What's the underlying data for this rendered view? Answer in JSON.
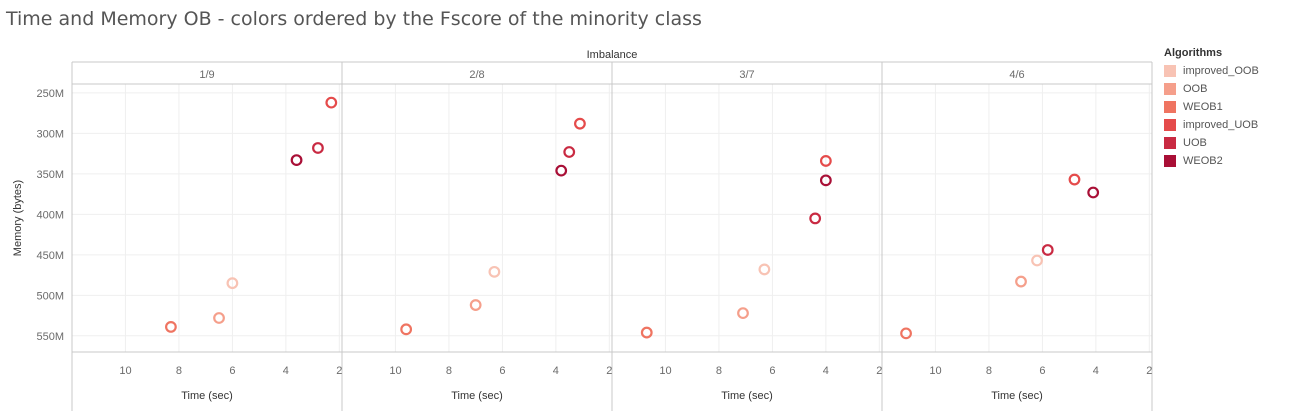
{
  "title": "Time and Memory OB  - colors ordered by the Fscore of the minority class",
  "legend": {
    "title": "Algorithms",
    "items": [
      {
        "label": "improved_OOB",
        "color": "#f8c3b4"
      },
      {
        "label": "OOB",
        "color": "#f59f8b"
      },
      {
        "label": "WEOB1",
        "color": "#ef7461"
      },
      {
        "label": "improved_UOB",
        "color": "#e54b4b"
      },
      {
        "label": "UOB",
        "color": "#c92a42"
      },
      {
        "label": "WEOB2",
        "color": "#a90f36"
      }
    ]
  },
  "chart_data": {
    "type": "scatter",
    "facet_header": "Imbalance",
    "xlabel": "Time (sec)",
    "ylabel": "Memory (bytes)",
    "x_reversed": true,
    "xlim": [
      12,
      1.9
    ],
    "x_ticks": [
      10,
      8,
      6,
      4,
      2
    ],
    "y_reversed": true,
    "ylim": [
      239,
      570
    ],
    "y_ticks": [
      250,
      300,
      350,
      400,
      450,
      500,
      550
    ],
    "y_tick_labels": [
      "250M",
      "300M",
      "350M",
      "400M",
      "450M",
      "500M",
      "550M"
    ],
    "grid": true,
    "legend_position": "right",
    "panels": [
      {
        "label": "1/9",
        "points": [
          {
            "algorithm": "improved_OOB",
            "x": 6.0,
            "y": 485
          },
          {
            "algorithm": "OOB",
            "x": 6.5,
            "y": 528
          },
          {
            "algorithm": "WEOB1",
            "x": 8.3,
            "y": 539
          },
          {
            "algorithm": "improved_UOB",
            "x": 2.3,
            "y": 262
          },
          {
            "algorithm": "UOB",
            "x": 2.8,
            "y": 318
          },
          {
            "algorithm": "WEOB2",
            "x": 3.6,
            "y": 333
          }
        ]
      },
      {
        "label": "2/8",
        "points": [
          {
            "algorithm": "improved_OOB",
            "x": 6.3,
            "y": 471
          },
          {
            "algorithm": "OOB",
            "x": 7.0,
            "y": 512
          },
          {
            "algorithm": "WEOB1",
            "x": 9.6,
            "y": 542
          },
          {
            "algorithm": "improved_UOB",
            "x": 3.1,
            "y": 288
          },
          {
            "algorithm": "UOB",
            "x": 3.5,
            "y": 323
          },
          {
            "algorithm": "WEOB2",
            "x": 3.8,
            "y": 346
          }
        ]
      },
      {
        "label": "3/7",
        "points": [
          {
            "algorithm": "improved_OOB",
            "x": 6.3,
            "y": 468
          },
          {
            "algorithm": "OOB",
            "x": 7.1,
            "y": 522
          },
          {
            "algorithm": "WEOB1",
            "x": 10.7,
            "y": 546
          },
          {
            "algorithm": "improved_UOB",
            "x": 4.0,
            "y": 334
          },
          {
            "algorithm": "UOB",
            "x": 4.4,
            "y": 405
          },
          {
            "algorithm": "WEOB2",
            "x": 4.0,
            "y": 358
          }
        ]
      },
      {
        "label": "4/6",
        "points": [
          {
            "algorithm": "improved_OOB",
            "x": 6.2,
            "y": 457
          },
          {
            "algorithm": "OOB",
            "x": 6.8,
            "y": 483
          },
          {
            "algorithm": "WEOB1",
            "x": 11.1,
            "y": 547
          },
          {
            "algorithm": "improved_UOB",
            "x": 4.8,
            "y": 357
          },
          {
            "algorithm": "UOB",
            "x": 5.8,
            "y": 444
          },
          {
            "algorithm": "WEOB2",
            "x": 4.1,
            "y": 373
          }
        ]
      }
    ]
  }
}
